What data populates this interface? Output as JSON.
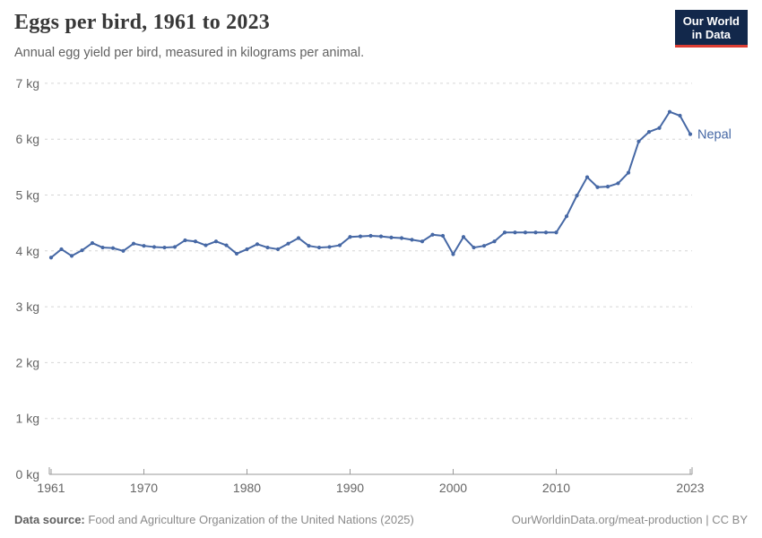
{
  "header": {
    "title": "Eggs per bird, 1961 to 2023",
    "subtitle": "Annual egg yield per bird, measured in kilograms per animal."
  },
  "logo": {
    "line1": "Our World",
    "line2": "in Data",
    "bg_color": "#12284B",
    "accent_color": "#DC3D33"
  },
  "chart_data": {
    "type": "line",
    "title": "Eggs per bird, 1961 to 2023",
    "xlabel": "",
    "ylabel": "kg",
    "xlim": [
      1961,
      2023
    ],
    "ylim": [
      0,
      7
    ],
    "x_ticks": [
      1961,
      1970,
      1980,
      1990,
      2000,
      2010,
      2023
    ],
    "y_ticks": [
      0,
      1,
      2,
      3,
      4,
      5,
      6,
      7
    ],
    "y_tick_suffix": " kg",
    "grid": "horizontal-dashed",
    "grid_color": "#d6d6d6",
    "axis_color": "#9a9a9a",
    "tick_label_color": "#666666",
    "legend_position": "end-of-line-label",
    "series": [
      {
        "name": "Nepal",
        "color": "#4668A5",
        "years": [
          1961,
          1962,
          1963,
          1964,
          1965,
          1966,
          1967,
          1968,
          1969,
          1970,
          1971,
          1972,
          1973,
          1974,
          1975,
          1976,
          1977,
          1978,
          1979,
          1980,
          1981,
          1982,
          1983,
          1984,
          1985,
          1986,
          1987,
          1988,
          1989,
          1990,
          1991,
          1992,
          1993,
          1994,
          1995,
          1996,
          1997,
          1998,
          1999,
          2000,
          2001,
          2002,
          2003,
          2004,
          2005,
          2006,
          2007,
          2008,
          2009,
          2010,
          2011,
          2012,
          2013,
          2014,
          2015,
          2016,
          2017,
          2018,
          2019,
          2020,
          2021,
          2022,
          2023
        ],
        "values": [
          3.88,
          4.03,
          3.91,
          4.01,
          4.14,
          4.06,
          4.05,
          4.0,
          4.13,
          4.09,
          4.07,
          4.06,
          4.07,
          4.19,
          4.17,
          4.1,
          4.17,
          4.1,
          3.95,
          4.03,
          4.12,
          4.06,
          4.03,
          4.13,
          4.23,
          4.09,
          4.06,
          4.07,
          4.1,
          4.25,
          4.26,
          4.27,
          4.26,
          4.24,
          4.23,
          4.2,
          4.17,
          4.29,
          4.27,
          3.94,
          4.25,
          4.06,
          4.09,
          4.17,
          4.33,
          4.33,
          4.33,
          4.33,
          4.33,
          4.33,
          4.62,
          4.99,
          5.32,
          5.14,
          5.15,
          5.21,
          5.4,
          5.96,
          6.13,
          6.2,
          6.49,
          6.42,
          6.09
        ]
      }
    ]
  },
  "footer": {
    "source_label": "Data source:",
    "source_text": "Food and Agriculture Organization of the United Nations (2025)",
    "credit_text": "OurWorldinData.org/meat-production | CC BY"
  }
}
